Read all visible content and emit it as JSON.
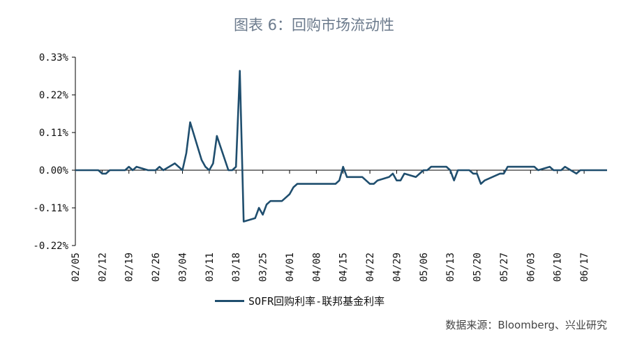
{
  "title": "图表 6：回购市场流动性",
  "source": "数据来源：Bloomberg、兴业研究",
  "colors": {
    "series": "#1f4e6e",
    "axis": "#000000"
  },
  "chart_data": {
    "type": "line",
    "title": "图表 6：回购市场流动性",
    "ylim": [
      -0.22,
      0.33
    ],
    "yticks": [
      0.33,
      0.22,
      0.11,
      0.0,
      -0.11,
      -0.22
    ],
    "ytick_labels": [
      "0.33%",
      "0.22%",
      "0.11%",
      "0.00%",
      "-0.11%",
      "-0.22%"
    ],
    "xlim": [
      "2020-02-05",
      "2020-06-23"
    ],
    "xtick_labels": [
      "02/05",
      "02/12",
      "02/19",
      "02/26",
      "03/04",
      "03/11",
      "03/18",
      "03/25",
      "04/01",
      "04/08",
      "04/15",
      "04/22",
      "04/29",
      "05/06",
      "05/13",
      "05/20",
      "05/27",
      "06/03",
      "06/10",
      "06/17"
    ],
    "legend": "bottom",
    "series": [
      {
        "name": "SOFR回购利率-联邦基金利率",
        "x": [
          "2020-02-05",
          "2020-02-06",
          "2020-02-07",
          "2020-02-10",
          "2020-02-11",
          "2020-02-12",
          "2020-02-13",
          "2020-02-14",
          "2020-02-18",
          "2020-02-19",
          "2020-02-20",
          "2020-02-21",
          "2020-02-24",
          "2020-02-25",
          "2020-02-26",
          "2020-02-27",
          "2020-02-28",
          "2020-03-02",
          "2020-03-03",
          "2020-03-04",
          "2020-03-05",
          "2020-03-06",
          "2020-03-09",
          "2020-03-10",
          "2020-03-11",
          "2020-03-12",
          "2020-03-13",
          "2020-03-16",
          "2020-03-17",
          "2020-03-18",
          "2020-03-19",
          "2020-03-20",
          "2020-03-23",
          "2020-03-24",
          "2020-03-25",
          "2020-03-26",
          "2020-03-27",
          "2020-03-30",
          "2020-03-31",
          "2020-04-01",
          "2020-04-02",
          "2020-04-03",
          "2020-04-06",
          "2020-04-07",
          "2020-04-08",
          "2020-04-09",
          "2020-04-13",
          "2020-04-14",
          "2020-04-15",
          "2020-04-16",
          "2020-04-17",
          "2020-04-20",
          "2020-04-21",
          "2020-04-22",
          "2020-04-23",
          "2020-04-24",
          "2020-04-27",
          "2020-04-28",
          "2020-04-29",
          "2020-04-30",
          "2020-05-01",
          "2020-05-04",
          "2020-05-05",
          "2020-05-06",
          "2020-05-07",
          "2020-05-08",
          "2020-05-11",
          "2020-05-12",
          "2020-05-13",
          "2020-05-14",
          "2020-05-15",
          "2020-05-18",
          "2020-05-19",
          "2020-05-20",
          "2020-05-21",
          "2020-05-22",
          "2020-05-26",
          "2020-05-27",
          "2020-05-28",
          "2020-05-29",
          "2020-06-01",
          "2020-06-02",
          "2020-06-03",
          "2020-06-04",
          "2020-06-05",
          "2020-06-08",
          "2020-06-09",
          "2020-06-10",
          "2020-06-11",
          "2020-06-12",
          "2020-06-15",
          "2020-06-16",
          "2020-06-17",
          "2020-06-18",
          "2020-06-19",
          "2020-06-22",
          "2020-06-23"
        ],
        "values": [
          0,
          0,
          0,
          0,
          0,
          -0.01,
          -0.01,
          0,
          0,
          0.01,
          0,
          0.01,
          0,
          0,
          0,
          0.01,
          0,
          0.02,
          0.01,
          0,
          0.05,
          0.14,
          0.03,
          0.01,
          0,
          0.02,
          0.1,
          0,
          0,
          0.01,
          0.29,
          -0.15,
          -0.14,
          -0.11,
          -0.13,
          -0.1,
          -0.09,
          -0.09,
          -0.08,
          -0.07,
          -0.05,
          -0.04,
          -0.04,
          -0.04,
          -0.04,
          -0.04,
          -0.04,
          -0.03,
          0.01,
          -0.02,
          -0.02,
          -0.02,
          -0.03,
          -0.04,
          -0.04,
          -0.03,
          -0.02,
          -0.01,
          -0.03,
          -0.03,
          -0.01,
          -0.02,
          -0.01,
          0,
          0,
          0.01,
          0.01,
          0.01,
          0,
          -0.03,
          0,
          0,
          -0.01,
          -0.01,
          -0.04,
          -0.03,
          -0.01,
          -0.01,
          0.01,
          0.01,
          0.01,
          0.01,
          0.01,
          0.01,
          0,
          0.01,
          0,
          0,
          0,
          0.01,
          -0.01,
          0,
          0,
          0,
          0,
          0,
          0
        ]
      }
    ]
  }
}
